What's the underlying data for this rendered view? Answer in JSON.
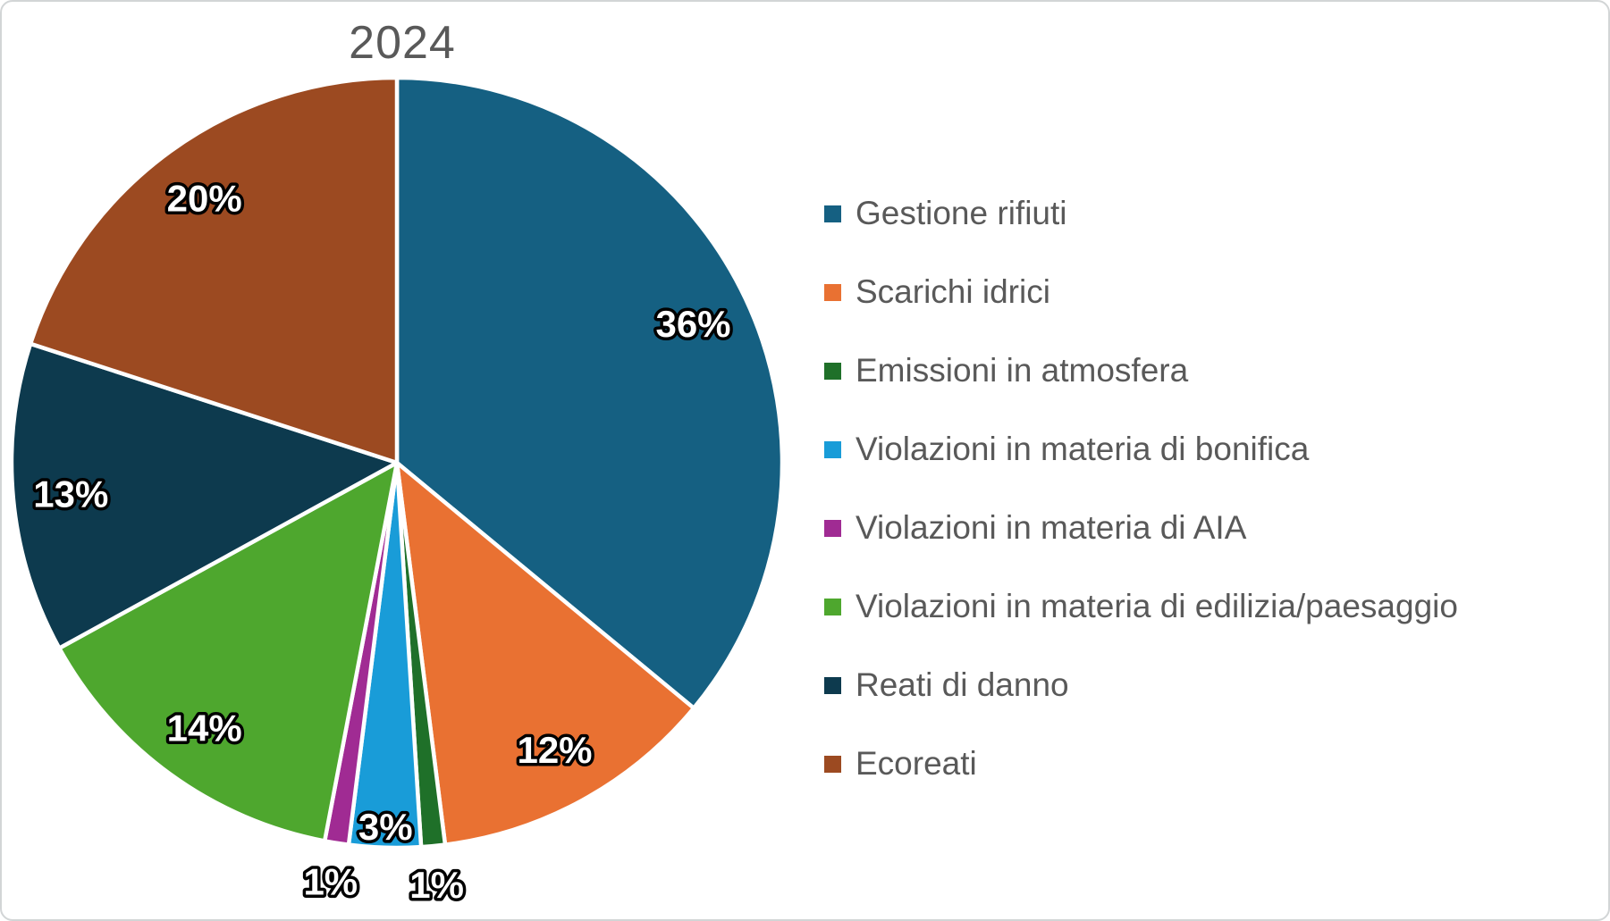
{
  "chart_title": "2024",
  "chart_data": {
    "type": "pie",
    "title": "2024",
    "unit": "percent",
    "legend_position": "right",
    "direction": "clockwise",
    "start_angle_deg": 0,
    "data_label_format": "0%",
    "slices": [
      {
        "label": "Gestione rifiuti",
        "value": 36,
        "color": "#156082",
        "data_label": "36%"
      },
      {
        "label": "Scarichi idrici",
        "value": 12,
        "color": "#E97132",
        "data_label": "12%"
      },
      {
        "label": "Emissioni in atmosfera",
        "value": 1,
        "color": "#1F7029",
        "data_label": "1%"
      },
      {
        "label": "Violazioni in materia di bonifica",
        "value": 3,
        "color": "#199CD8",
        "data_label": "3%"
      },
      {
        "label": "Violazioni in materia di AIA",
        "value": 1,
        "color": "#A02B93",
        "data_label": "1%"
      },
      {
        "label": "Violazioni in materia di edilizia/paesaggio",
        "value": 14,
        "color": "#4EA72E",
        "data_label": "14%"
      },
      {
        "label": "Reati di danno",
        "value": 13,
        "color": "#0D3A4E",
        "data_label": "13%"
      },
      {
        "label": "Ecoreati",
        "value": 20,
        "color": "#9C4A21",
        "data_label": "20%"
      }
    ]
  }
}
